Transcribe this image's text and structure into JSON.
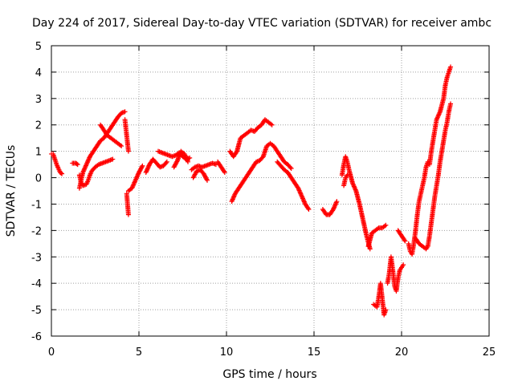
{
  "chart_data": {
    "type": "scatter",
    "title": "Day 224 of 2017, Sidereal Day-to-day VTEC variation (SDTVAR) for receiver ambc",
    "xlabel": "GPS time / hours",
    "ylabel": "SDTVAR / TECUs",
    "xlim": [
      0,
      25
    ],
    "ylim": [
      -6,
      5
    ],
    "xticks": [
      "0",
      "5",
      "10",
      "15",
      "20",
      "25"
    ],
    "yticks": [
      "-6",
      "-5",
      "-4",
      "-3",
      "-2",
      "-1",
      "0",
      "1",
      "2",
      "3",
      "4",
      "5"
    ],
    "grid": true,
    "marker": "plus",
    "color": "#ff0000",
    "series": [
      {
        "segments": [
          [
            [
              0.0,
              0.9
            ],
            [
              0.1,
              0.9
            ],
            [
              0.2,
              0.7
            ],
            [
              0.3,
              0.5
            ],
            [
              0.4,
              0.35
            ],
            [
              0.5,
              0.2
            ],
            [
              0.6,
              0.15
            ]
          ],
          [
            [
              1.2,
              0.55
            ],
            [
              1.4,
              0.55
            ],
            [
              1.5,
              0.5
            ]
          ],
          [
            [
              1.6,
              0.1
            ],
            [
              1.7,
              -0.2
            ],
            [
              1.8,
              -0.3
            ],
            [
              2.0,
              -0.25
            ],
            [
              2.1,
              -0.1
            ],
            [
              2.2,
              0.1
            ],
            [
              2.3,
              0.25
            ],
            [
              2.5,
              0.4
            ],
            [
              2.7,
              0.5
            ],
            [
              2.9,
              0.55
            ],
            [
              3.1,
              0.6
            ],
            [
              3.3,
              0.65
            ],
            [
              3.5,
              0.7
            ]
          ],
          [
            [
              1.6,
              -0.4
            ],
            [
              1.7,
              -0.1
            ],
            [
              1.8,
              0.2
            ],
            [
              2.0,
              0.5
            ],
            [
              2.2,
              0.8
            ],
            [
              2.4,
              1.0
            ],
            [
              2.6,
              1.2
            ],
            [
              2.8,
              1.4
            ],
            [
              3.0,
              1.5
            ],
            [
              3.2,
              1.7
            ],
            [
              3.4,
              1.9
            ],
            [
              3.6,
              2.1
            ],
            [
              3.8,
              2.3
            ],
            [
              4.0,
              2.45
            ],
            [
              4.2,
              2.5
            ]
          ],
          [
            [
              2.8,
              2.0
            ],
            [
              3.0,
              1.8
            ],
            [
              3.2,
              1.6
            ],
            [
              3.4,
              1.5
            ],
            [
              3.6,
              1.4
            ],
            [
              3.8,
              1.3
            ],
            [
              4.0,
              1.2
            ]
          ],
          [
            [
              4.2,
              2.2
            ],
            [
              4.25,
              1.9
            ],
            [
              4.3,
              1.6
            ],
            [
              4.35,
              1.3
            ],
            [
              4.4,
              1.0
            ]
          ],
          [
            [
              4.3,
              -0.6
            ],
            [
              4.35,
              -1.0
            ],
            [
              4.4,
              -1.4
            ]
          ],
          [
            [
              4.4,
              -0.5
            ],
            [
              4.6,
              -0.4
            ],
            [
              4.8,
              -0.1
            ],
            [
              5.0,
              0.2
            ],
            [
              5.2,
              0.45
            ]
          ],
          [
            [
              5.4,
              0.2
            ],
            [
              5.6,
              0.5
            ],
            [
              5.8,
              0.7
            ],
            [
              6.0,
              0.55
            ],
            [
              6.2,
              0.4
            ],
            [
              6.4,
              0.45
            ],
            [
              6.6,
              0.6
            ]
          ],
          [
            [
              6.1,
              1.0
            ],
            [
              6.3,
              0.95
            ],
            [
              6.5,
              0.9
            ],
            [
              6.7,
              0.85
            ],
            [
              6.9,
              0.8
            ],
            [
              7.1,
              0.85
            ],
            [
              7.3,
              0.95
            ],
            [
              7.5,
              0.8
            ],
            [
              7.7,
              0.7
            ],
            [
              7.9,
              0.75
            ]
          ],
          [
            [
              7.0,
              0.4
            ],
            [
              7.2,
              0.65
            ],
            [
              7.4,
              1.0
            ],
            [
              7.6,
              0.9
            ],
            [
              7.8,
              0.6
            ]
          ],
          [
            [
              8.0,
              0.3
            ],
            [
              8.2,
              0.4
            ],
            [
              8.4,
              0.45
            ],
            [
              8.6,
              0.4
            ],
            [
              8.8,
              0.45
            ],
            [
              9.0,
              0.5
            ],
            [
              9.2,
              0.55
            ],
            [
              9.4,
              0.5
            ]
          ],
          [
            [
              8.1,
              0.0
            ],
            [
              8.3,
              0.25
            ],
            [
              8.5,
              0.3
            ],
            [
              8.7,
              0.15
            ],
            [
              8.9,
              -0.1
            ]
          ],
          [
            [
              9.5,
              0.6
            ],
            [
              9.7,
              0.4
            ],
            [
              9.9,
              0.2
            ]
          ],
          [
            [
              10.2,
              1.0
            ],
            [
              10.4,
              0.8
            ],
            [
              10.6,
              1.0
            ],
            [
              10.8,
              1.5
            ],
            [
              11.0,
              1.6
            ],
            [
              11.2,
              1.7
            ],
            [
              11.4,
              1.8
            ],
            [
              11.6,
              1.75
            ],
            [
              11.8,
              1.9
            ],
            [
              12.0,
              2.0
            ],
            [
              12.2,
              2.2
            ],
            [
              12.4,
              2.1
            ],
            [
              12.6,
              2.0
            ]
          ],
          [
            [
              10.3,
              -0.9
            ],
            [
              10.5,
              -0.6
            ],
            [
              10.7,
              -0.4
            ],
            [
              10.9,
              -0.2
            ],
            [
              11.1,
              0.0
            ],
            [
              11.3,
              0.2
            ],
            [
              11.5,
              0.4
            ],
            [
              11.7,
              0.6
            ],
            [
              11.9,
              0.65
            ],
            [
              12.1,
              0.8
            ],
            [
              12.3,
              1.2
            ],
            [
              12.5,
              1.3
            ],
            [
              12.7,
              1.2
            ],
            [
              12.9,
              1.0
            ],
            [
              13.1,
              0.8
            ],
            [
              13.3,
              0.6
            ],
            [
              13.5,
              0.5
            ],
            [
              13.7,
              0.35
            ]
          ],
          [
            [
              12.9,
              0.6
            ],
            [
              13.1,
              0.45
            ],
            [
              13.3,
              0.3
            ],
            [
              13.5,
              0.2
            ],
            [
              13.7,
              0.0
            ],
            [
              13.9,
              -0.2
            ],
            [
              14.1,
              -0.4
            ],
            [
              14.3,
              -0.7
            ],
            [
              14.5,
              -1.0
            ],
            [
              14.7,
              -1.2
            ]
          ],
          [
            [
              15.5,
              -1.2
            ],
            [
              15.7,
              -1.4
            ],
            [
              15.9,
              -1.4
            ],
            [
              16.1,
              -1.2
            ],
            [
              16.3,
              -0.9
            ]
          ],
          [
            [
              16.6,
              0.1
            ],
            [
              16.7,
              0.5
            ],
            [
              16.8,
              0.8
            ],
            [
              16.9,
              0.6
            ],
            [
              17.0,
              0.3
            ],
            [
              17.2,
              -0.2
            ],
            [
              17.4,
              -0.5
            ],
            [
              17.6,
              -1.0
            ],
            [
              17.8,
              -1.6
            ],
            [
              18.0,
              -2.2
            ],
            [
              18.2,
              -2.7
            ]
          ],
          [
            [
              16.7,
              -0.3
            ],
            [
              16.8,
              0.0
            ],
            [
              16.9,
              0.1
            ]
          ],
          [
            [
              18.1,
              -2.6
            ],
            [
              18.3,
              -2.1
            ],
            [
              18.5,
              -2.0
            ],
            [
              18.7,
              -1.9
            ],
            [
              18.9,
              -1.9
            ],
            [
              19.1,
              -1.8
            ]
          ],
          [
            [
              18.4,
              -4.8
            ],
            [
              18.6,
              -4.9
            ],
            [
              18.7,
              -4.5
            ],
            [
              18.8,
              -4.0
            ],
            [
              18.9,
              -4.6
            ],
            [
              19.0,
              -5.2
            ],
            [
              19.1,
              -5.0
            ]
          ],
          [
            [
              19.2,
              -4.0
            ],
            [
              19.3,
              -3.6
            ],
            [
              19.4,
              -3.0
            ],
            [
              19.5,
              -3.5
            ],
            [
              19.6,
              -4.1
            ],
            [
              19.7,
              -4.3
            ],
            [
              19.8,
              -3.8
            ],
            [
              19.9,
              -3.5
            ],
            [
              20.0,
              -3.4
            ],
            [
              20.1,
              -3.3
            ]
          ],
          [
            [
              19.8,
              -2.0
            ],
            [
              20.0,
              -2.2
            ],
            [
              20.2,
              -2.4
            ]
          ],
          [
            [
              20.4,
              -2.5
            ],
            [
              20.5,
              -2.8
            ],
            [
              20.6,
              -2.9
            ],
            [
              20.7,
              -2.5
            ],
            [
              20.8,
              -2.0
            ],
            [
              20.9,
              -1.4
            ],
            [
              21.0,
              -0.9
            ],
            [
              21.1,
              -0.6
            ],
            [
              21.2,
              -0.3
            ],
            [
              21.3,
              0.0
            ],
            [
              21.4,
              0.4
            ],
            [
              21.5,
              0.6
            ],
            [
              21.6,
              0.5
            ],
            [
              21.7,
              1.0
            ],
            [
              21.8,
              1.4
            ],
            [
              21.9,
              1.8
            ],
            [
              22.0,
              2.2
            ],
            [
              22.2,
              2.5
            ],
            [
              22.4,
              3.0
            ],
            [
              22.5,
              3.5
            ],
            [
              22.6,
              3.8
            ],
            [
              22.7,
              4.0
            ],
            [
              22.8,
              4.2
            ]
          ],
          [
            [
              20.8,
              -2.3
            ],
            [
              21.0,
              -2.5
            ],
            [
              21.2,
              -2.6
            ],
            [
              21.4,
              -2.7
            ],
            [
              21.5,
              -2.6
            ],
            [
              21.6,
              -2.2
            ],
            [
              21.7,
              -1.7
            ],
            [
              21.8,
              -1.2
            ],
            [
              21.9,
              -0.7
            ],
            [
              22.0,
              -0.3
            ],
            [
              22.1,
              0.1
            ],
            [
              22.2,
              0.6
            ],
            [
              22.3,
              1.0
            ],
            [
              22.4,
              1.4
            ],
            [
              22.5,
              1.8
            ],
            [
              22.6,
              2.1
            ],
            [
              22.7,
              2.5
            ],
            [
              22.8,
              2.8
            ]
          ]
        ]
      }
    ]
  }
}
